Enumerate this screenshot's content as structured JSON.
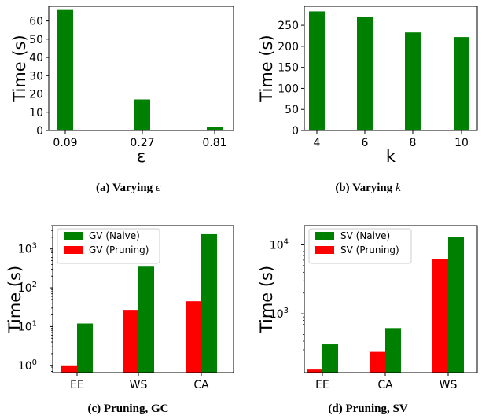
{
  "colors": {
    "naive": "#008000",
    "pruning": "#ff0000",
    "single": "#008000"
  },
  "chart_data": [
    {
      "id": "a",
      "type": "bar",
      "categories": [
        "0.09",
        "0.27",
        "0.81"
      ],
      "series": [
        {
          "values": [
            66,
            17,
            2
          ]
        }
      ],
      "xlabel": "ε",
      "ylabel": "Time (s)",
      "ylim": [
        0,
        68
      ],
      "yticks": [
        "0",
        "10",
        "20",
        "30",
        "40",
        "50",
        "60"
      ],
      "scale": "linear",
      "caption_bold": "(a) Varying ",
      "caption_sym": "ϵ"
    },
    {
      "id": "b",
      "type": "bar",
      "categories": [
        "4",
        "6",
        "8",
        "10"
      ],
      "series": [
        {
          "values": [
            283,
            270,
            233,
            222
          ]
        }
      ],
      "xlabel": "k",
      "ylabel": "Time (s)",
      "ylim": [
        0,
        295
      ],
      "yticks": [
        "0",
        "50",
        "100",
        "150",
        "200",
        "250"
      ],
      "scale": "linear",
      "caption_bold": "(b) Varying ",
      "caption_sym": "k"
    },
    {
      "id": "c",
      "type": "bar",
      "categories": [
        "EE",
        "WS",
        "CA"
      ],
      "series": [
        {
          "name": "GV (Pruning)",
          "values": [
            1.0,
            27,
            45
          ]
        },
        {
          "name": "GV (Naive)",
          "values": [
            12,
            350,
            2400
          ]
        }
      ],
      "xlabel": "",
      "ylabel": "Time (s)",
      "ylim": [
        0.65,
        4000
      ],
      "scale": "log",
      "legend": "upper-left",
      "caption_bold": "(c) Pruning, GC",
      "caption_sym": ""
    },
    {
      "id": "d",
      "type": "bar",
      "categories": [
        "EE",
        "CA",
        "WS"
      ],
      "series": [
        {
          "name": "SV (Pruning)",
          "values": [
            155,
            280,
            6300
          ]
        },
        {
          "name": "SV (Naive)",
          "values": [
            360,
            620,
            13000
          ]
        }
      ],
      "xlabel": "",
      "ylabel": "Time (s)",
      "ylim": [
        140,
        19000
      ],
      "scale": "log",
      "legend": "upper-left",
      "caption_bold": "(d) Pruning, SV",
      "caption_sym": ""
    }
  ]
}
